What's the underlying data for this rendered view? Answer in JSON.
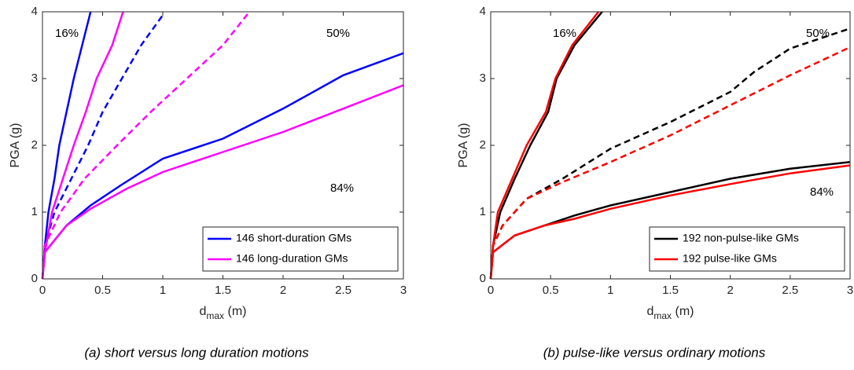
{
  "chart_data": [
    {
      "type": "line",
      "ylabel": "PGA (g)",
      "xlabel": {
        "base": "d",
        "sub": "max",
        "rest": " (m)"
      },
      "caption": "(a) short versus long duration motions",
      "xlim": [
        0,
        3
      ],
      "ylim": [
        0,
        4
      ],
      "xticks": [
        0,
        0.5,
        1,
        1.5,
        2,
        2.5,
        3
      ],
      "yticks": [
        0,
        1,
        2,
        3,
        4
      ],
      "legend": "lower right",
      "annotations": [
        "16%",
        "50%",
        "84%"
      ],
      "series": [
        {
          "name": "146 short-duration GMs",
          "color": "#0000ff",
          "curves": [
            {
              "style": "solid",
              "x": [
                0,
                0.02,
                0.05,
                0.1,
                0.14,
                0.2,
                0.26,
                0.33,
                0.4
              ],
              "values": [
                0,
                0.5,
                1,
                1.5,
                2,
                2.5,
                3,
                3.5,
                4
              ]
            },
            {
              "style": "dashed",
              "x": [
                0,
                0.02,
                0.1,
                0.24,
                0.38,
                0.5,
                0.66,
                0.82,
                1.0
              ],
              "values": [
                0,
                0.5,
                1,
                1.5,
                2,
                2.5,
                3,
                3.5,
                3.95
              ]
            },
            {
              "style": "solid",
              "x": [
                0,
                0.02,
                0.2,
                0.4,
                0.65,
                1.0,
                1.5,
                2.0,
                2.5,
                3
              ],
              "values": [
                0,
                0.4,
                0.8,
                1.1,
                1.4,
                1.8,
                2.1,
                2.55,
                3.05,
                3.38
              ]
            }
          ]
        },
        {
          "name": "146 long-duration GMs",
          "color": "#ff00ff",
          "curves": [
            {
              "style": "solid",
              "x": [
                0,
                0.02,
                0.08,
                0.17,
                0.26,
                0.36,
                0.45,
                0.58,
                0.67
              ],
              "values": [
                0,
                0.4,
                1,
                1.5,
                2,
                2.5,
                3,
                3.5,
                4
              ]
            },
            {
              "style": "dashed",
              "x": [
                0,
                0.02,
                0.15,
                0.35,
                0.62,
                0.9,
                1.2,
                1.5,
                1.72
              ],
              "values": [
                0,
                0.5,
                1,
                1.5,
                2,
                2.5,
                3,
                3.5,
                4
              ]
            },
            {
              "style": "solid",
              "x": [
                0,
                0.02,
                0.2,
                0.4,
                0.7,
                1.0,
                1.5,
                2.0,
                2.5,
                3
              ],
              "values": [
                0,
                0.4,
                0.8,
                1.05,
                1.35,
                1.6,
                1.9,
                2.2,
                2.55,
                2.9
              ]
            }
          ]
        }
      ]
    },
    {
      "type": "line",
      "ylabel": "PGA (g)",
      "xlabel": {
        "base": "d",
        "sub": "max",
        "rest": " (m)"
      },
      "caption": "(b) pulse-like versus ordinary motions",
      "xlim": [
        0,
        3
      ],
      "ylim": [
        0,
        4
      ],
      "xticks": [
        0,
        0.5,
        1,
        1.5,
        2,
        2.5,
        3
      ],
      "yticks": [
        0,
        1,
        2,
        3,
        4
      ],
      "legend": "lower right",
      "annotations": [
        "16%",
        "50%",
        "84%"
      ],
      "series": [
        {
          "name": "192 non-pulse-like GMs",
          "color": "#000000",
          "curves": [
            {
              "style": "solid",
              "x": [
                0,
                0.02,
                0.08,
                0.2,
                0.33,
                0.48,
                0.55,
                0.7,
                0.93
              ],
              "values": [
                0,
                0.5,
                1,
                1.5,
                2,
                2.5,
                3,
                3.5,
                4
              ]
            },
            {
              "style": "dashed",
              "x": [
                0,
                0.02,
                0.1,
                0.3,
                0.6,
                1.0,
                1.5,
                2.0,
                2.2,
                2.5,
                3
              ],
              "values": [
                0,
                0.5,
                0.8,
                1.2,
                1.5,
                1.95,
                2.35,
                2.8,
                3.1,
                3.45,
                3.75
              ]
            },
            {
              "style": "solid",
              "x": [
                0,
                0.02,
                0.2,
                0.45,
                0.7,
                1.0,
                1.5,
                2.0,
                2.5,
                3
              ],
              "values": [
                0,
                0.4,
                0.65,
                0.8,
                0.95,
                1.1,
                1.3,
                1.5,
                1.65,
                1.75
              ]
            }
          ]
        },
        {
          "name": "192 pulse-like GMs",
          "color": "#ff0000",
          "curves": [
            {
              "style": "solid",
              "x": [
                0,
                0.02,
                0.06,
                0.18,
                0.3,
                0.46,
                0.54,
                0.68,
                0.9
              ],
              "values": [
                0,
                0.5,
                1,
                1.5,
                2,
                2.5,
                3,
                3.5,
                4
              ]
            },
            {
              "style": "dashed",
              "x": [
                0,
                0.02,
                0.1,
                0.3,
                0.6,
                1.0,
                1.5,
                2.0,
                2.5,
                3
              ],
              "values": [
                0,
                0.5,
                0.8,
                1.2,
                1.45,
                1.75,
                2.15,
                2.6,
                3.05,
                3.47
              ]
            },
            {
              "style": "solid",
              "x": [
                0,
                0.02,
                0.2,
                0.45,
                0.7,
                1.0,
                1.5,
                2.0,
                2.5,
                3
              ],
              "values": [
                0,
                0.4,
                0.65,
                0.8,
                0.9,
                1.05,
                1.25,
                1.42,
                1.58,
                1.7
              ]
            }
          ]
        }
      ]
    }
  ]
}
